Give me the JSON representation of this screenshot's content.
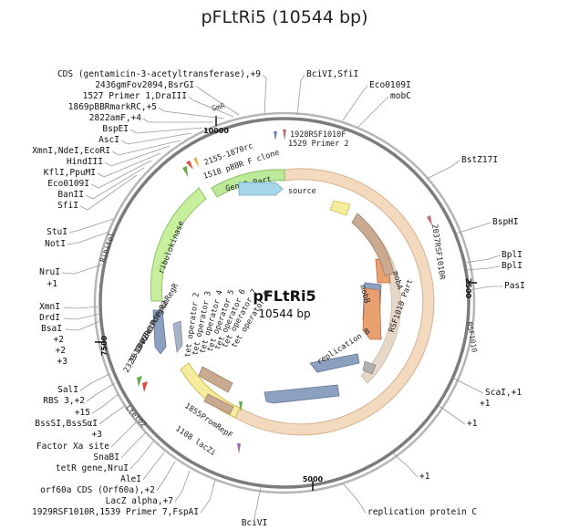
{
  "title": "pFLtRi5 (10544 bp)",
  "center": {
    "name": "pFLtRi5",
    "length": "10544 bp"
  },
  "ticks": [
    "10000",
    "2500",
    "5000",
    "7500"
  ],
  "outer_arc_labels": [
    "GmR",
    "Ribitol",
    "LtetO2",
    "RSF1010"
  ],
  "sites_left": [
    "CDS (gentamicin-3-acetyltransferase),+9",
    "2436gmFov2094,BsrGI",
    "1527 Primer 1,DraIII",
    "1869pBBRmarkRC,+5",
    "2822amF,+4",
    "BspEI",
    "AscI",
    "XmnI,NdeI,EcoRI",
    "HindIII",
    "KflI,PpuMI",
    "Eco0109I",
    "BanII",
    "SfiI",
    "StuI",
    "NotI",
    "NruI",
    "+1",
    "XmnI",
    "DrdI",
    "BsaI",
    "+2",
    "+2",
    "+3",
    "SalI",
    "RBS 3,+2",
    "+15",
    "BssSI,BssSαI",
    "+3",
    "Factor Xa site",
    "SnaBI",
    "tetR gene,NruI",
    "AleI",
    "orf60a CDS (Orf60a),+2",
    "LacZ alpha,+7",
    "1929RSF1010R,1539 Primer 7,FspAI"
  ],
  "sites_right": [
    "BciVI,SfiI",
    "Eco0109I",
    "mobC",
    "BstZ17I",
    "BspHI",
    "BplI",
    "BplI",
    "PasI",
    "ScaI,+1",
    "+1",
    "+1",
    "+1",
    "replication protein C"
  ],
  "sites_bottom": [
    "BciVI"
  ],
  "inner_labels": [
    "1928RSF1010F",
    "1529 Primer 2",
    "2037RSF1010R",
    "2155-1870rc",
    "1518 pBBR F clone",
    "1846TetRfPromRegR",
    "1913ntBetPdegR2",
    "2329-1792RC",
    "1855PromRepF",
    "1108 lacZi"
  ],
  "features": {
    "gentr": "GentR Part",
    "source": "source",
    "ribulokinase": "ribulokinase",
    "mobA": "mobA",
    "mobB": "mobB",
    "rsf1010_part": "RSF1010 Part",
    "replication_b": "replication B",
    "ltet02_part": "LtetO2 Part",
    "tet_ops": [
      "tet operator 9",
      "tet operator 7",
      "tet operator 6",
      "tet operator 5",
      "tet operator 4",
      "tet operator 3",
      "tet operator 2"
    ]
  },
  "colors": {
    "backbone": "#8d8d8d",
    "rsf_part": "#f3d9bd",
    "gentr_part": "#bde99a",
    "source": "#a7d6ea",
    "ltet_part": "#f6ec9e",
    "ribulokinase": "#c7ef9c",
    "orange": "#e8a070",
    "blue_gray": "#8da0c0",
    "tan": "#c9a98f"
  }
}
